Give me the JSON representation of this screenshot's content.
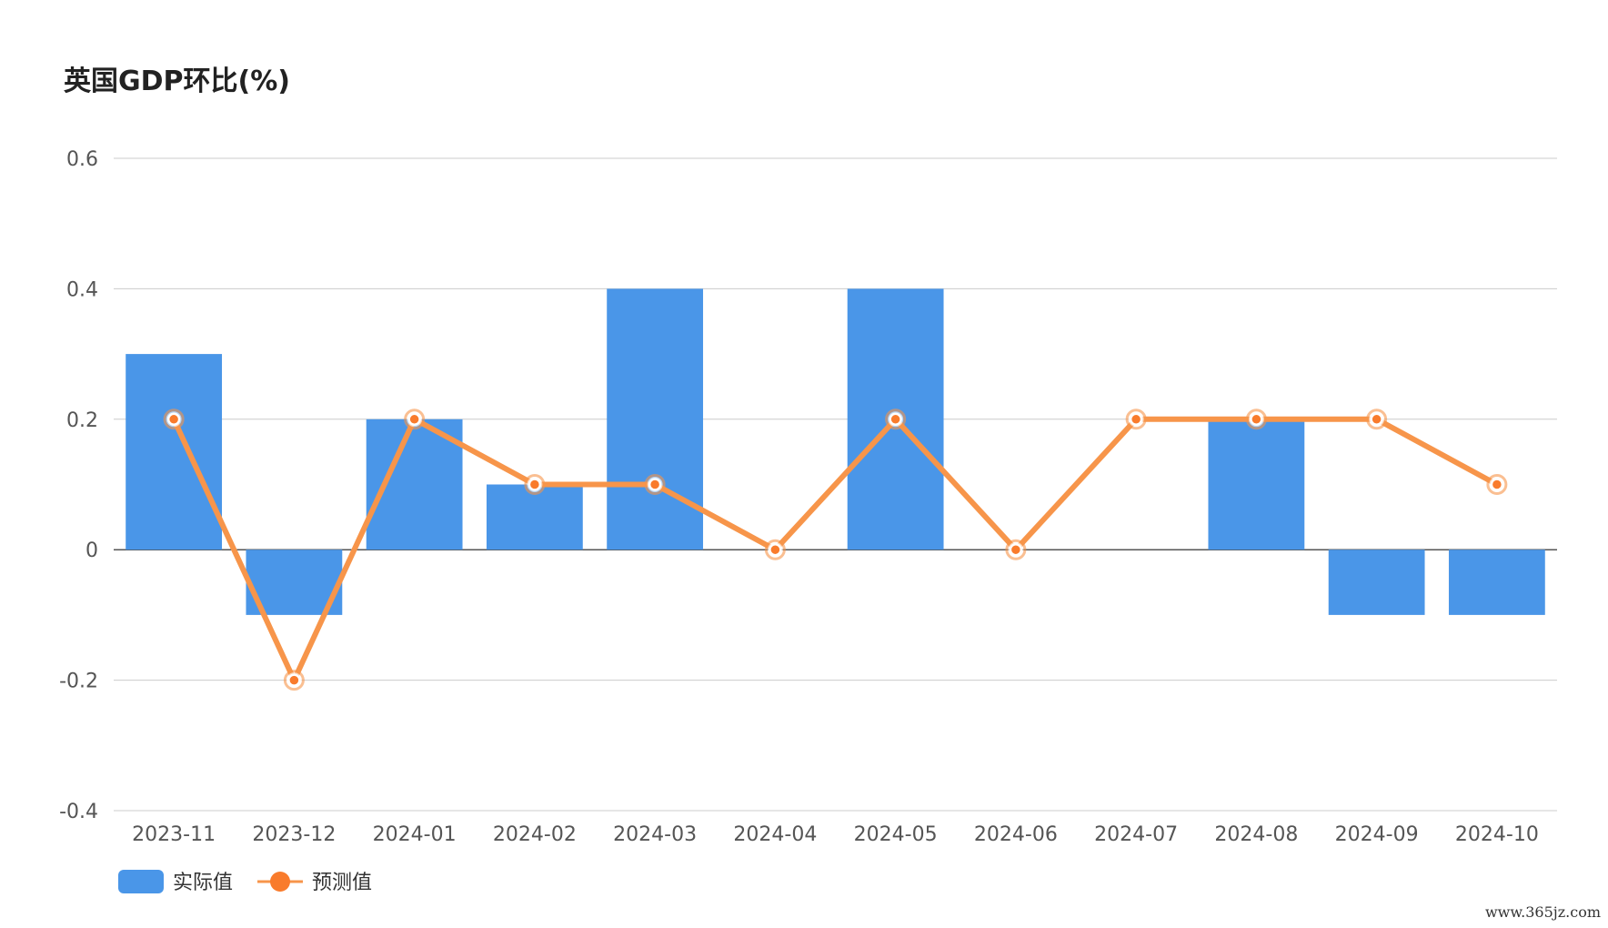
{
  "chart_data": {
    "type": "bar",
    "title": "英国GDP环比(%)",
    "categories": [
      "2023-11",
      "2023-12",
      "2024-01",
      "2024-02",
      "2024-03",
      "2024-04",
      "2024-05",
      "2024-06",
      "2024-07",
      "2024-08",
      "2024-09",
      "2024-10"
    ],
    "series": [
      {
        "name": "实际值",
        "type": "bar",
        "color": "#4a96e8",
        "values": [
          0.3,
          -0.1,
          0.2,
          0.1,
          0.4,
          0.0,
          0.4,
          0.0,
          0.0,
          0.2,
          -0.1,
          -0.1
        ]
      },
      {
        "name": "预测值",
        "type": "line",
        "color": "#f7954a",
        "values": [
          0.2,
          -0.2,
          0.2,
          0.1,
          0.1,
          0.0,
          0.2,
          0.0,
          0.2,
          0.2,
          0.2,
          0.1
        ]
      }
    ],
    "ylim": [
      -0.4,
      0.6
    ],
    "yticks": [
      0.6,
      0.4,
      0.2,
      0,
      -0.2,
      -0.4
    ],
    "ytick_labels": [
      "0.6",
      "0.4",
      "0.2",
      "0",
      "-0.2",
      "-0.4"
    ],
    "grid": true,
    "legend": "bottom-left"
  },
  "watermark": "www.365jz.com"
}
